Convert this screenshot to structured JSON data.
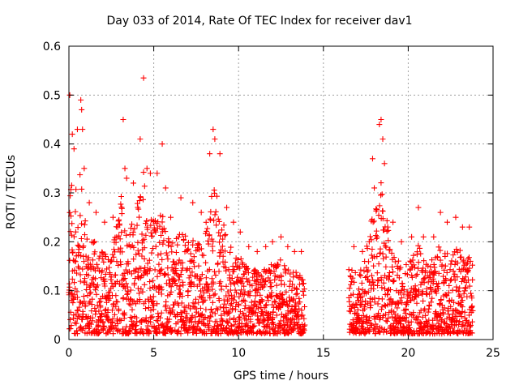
{
  "chart_data": {
    "type": "scatter",
    "title": "Day 033 of 2014, Rate Of TEC Index for receiver dav1",
    "xlabel": "GPS time / hours",
    "ylabel": "ROTI / TECUs",
    "xlim": [
      0,
      25
    ],
    "ylim": [
      0,
      0.6
    ],
    "xticks": [
      "0",
      "5",
      "10",
      "15",
      "20",
      "25"
    ],
    "yticks": [
      "0",
      "0.1",
      "0.2",
      "0.3",
      "0.4",
      "0.5",
      "0.6"
    ],
    "grid": true,
    "marker": "+",
    "color": "#ff0000",
    "data_gap_hours": [
      13.9,
      16.5
    ],
    "series": [
      {
        "name": "ROTI",
        "points": [
          [
            0.05,
            0.5
          ],
          [
            0.2,
            0.42
          ],
          [
            0.3,
            0.39
          ],
          [
            0.5,
            0.43
          ],
          [
            0.7,
            0.49
          ],
          [
            0.75,
            0.47
          ],
          [
            0.8,
            0.43
          ],
          [
            0.9,
            0.35
          ],
          [
            1.2,
            0.28
          ],
          [
            1.6,
            0.26
          ],
          [
            2.1,
            0.24
          ],
          [
            2.6,
            0.25
          ],
          [
            3.2,
            0.45
          ],
          [
            3.3,
            0.35
          ],
          [
            3.4,
            0.33
          ],
          [
            3.8,
            0.32
          ],
          [
            4.2,
            0.41
          ],
          [
            4.4,
            0.535
          ],
          [
            4.6,
            0.35
          ],
          [
            4.8,
            0.34
          ],
          [
            5.2,
            0.34
          ],
          [
            5.5,
            0.4
          ],
          [
            5.7,
            0.31
          ],
          [
            6.0,
            0.25
          ],
          [
            6.6,
            0.29
          ],
          [
            7.3,
            0.28
          ],
          [
            7.8,
            0.26
          ],
          [
            8.3,
            0.38
          ],
          [
            8.5,
            0.43
          ],
          [
            8.6,
            0.41
          ],
          [
            8.9,
            0.38
          ],
          [
            9.3,
            0.27
          ],
          [
            9.7,
            0.24
          ],
          [
            10.1,
            0.22
          ],
          [
            10.6,
            0.19
          ],
          [
            11.1,
            0.18
          ],
          [
            11.6,
            0.19
          ],
          [
            12.0,
            0.2
          ],
          [
            12.5,
            0.21
          ],
          [
            12.9,
            0.19
          ],
          [
            13.3,
            0.18
          ],
          [
            13.7,
            0.18
          ],
          [
            16.8,
            0.19
          ],
          [
            17.3,
            0.18
          ],
          [
            17.9,
            0.37
          ],
          [
            18.0,
            0.31
          ],
          [
            18.3,
            0.44
          ],
          [
            18.4,
            0.45
          ],
          [
            18.5,
            0.41
          ],
          [
            18.6,
            0.36
          ],
          [
            19.1,
            0.24
          ],
          [
            19.6,
            0.2
          ],
          [
            20.2,
            0.21
          ],
          [
            20.6,
            0.27
          ],
          [
            20.9,
            0.21
          ],
          [
            21.5,
            0.21
          ],
          [
            21.9,
            0.26
          ],
          [
            22.3,
            0.24
          ],
          [
            22.8,
            0.25
          ],
          [
            23.2,
            0.23
          ],
          [
            23.6,
            0.23
          ]
        ]
      }
    ]
  }
}
